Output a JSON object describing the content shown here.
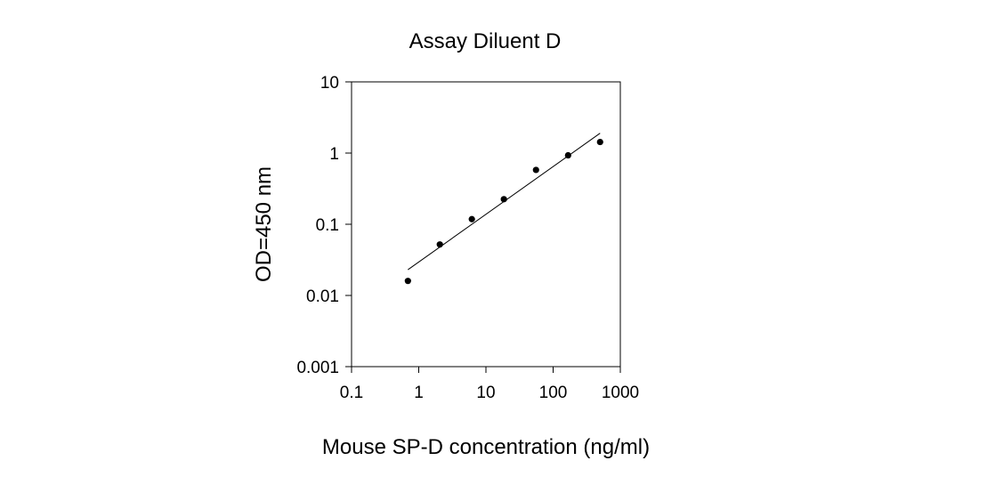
{
  "chart_data": {
    "type": "scatter",
    "title": "Assay Diluent D",
    "xlabel": "Mouse SP-D concentration (ng/ml)",
    "ylabel": "OD=450 nm",
    "x_scale": "log",
    "y_scale": "log",
    "xlim": [
      0.1,
      1000
    ],
    "ylim": [
      0.001,
      10
    ],
    "x_ticks": [
      "0.1",
      "1",
      "10",
      "100",
      "1000"
    ],
    "y_ticks": [
      "0.001",
      "0.01",
      "0.1",
      "1",
      "10"
    ],
    "grid": false,
    "series": [
      {
        "points": [
          {
            "x": 0.69,
            "y": 0.016
          },
          {
            "x": 2.06,
            "y": 0.052
          },
          {
            "x": 6.17,
            "y": 0.118
          },
          {
            "x": 18.5,
            "y": 0.225
          },
          {
            "x": 55.6,
            "y": 0.58
          },
          {
            "x": 167,
            "y": 0.93
          },
          {
            "x": 500,
            "y": 1.43
          }
        ]
      }
    ],
    "fit_line": {
      "x": [
        0.69,
        500
      ],
      "y": [
        0.023,
        1.9
      ]
    }
  }
}
